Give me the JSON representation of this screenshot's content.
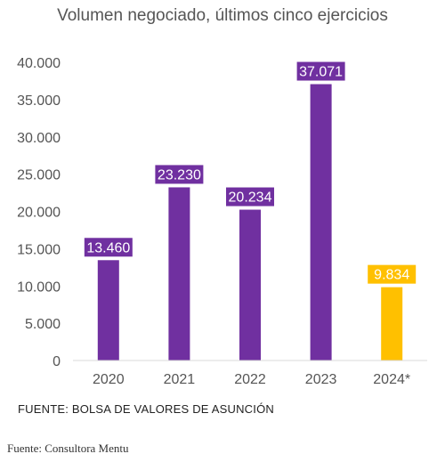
{
  "chart_data": {
    "type": "bar",
    "title": "Volumen negociado, últimos cinco ejercicios",
    "categories": [
      "2020",
      "2021",
      "2022",
      "2023",
      "2024*"
    ],
    "values": [
      13460,
      23230,
      20234,
      37071,
      9834
    ],
    "value_labels": [
      "13.460",
      "23.230",
      "20.234",
      "37.071",
      "9.834"
    ],
    "bar_colors": [
      "#7030a0",
      "#7030a0",
      "#7030a0",
      "#7030a0",
      "#ffc000"
    ],
    "ylim": [
      0,
      40000
    ],
    "yticks": [
      0,
      5000,
      10000,
      15000,
      20000,
      25000,
      30000,
      35000,
      40000
    ],
    "ytick_labels": [
      "0",
      "5.000",
      "10.000",
      "15.000",
      "20.000",
      "25.000",
      "30.000",
      "35.000",
      "40.000"
    ],
    "xlabel": "",
    "ylabel": "",
    "grid": false,
    "legend": "none"
  },
  "source_chart": "FUENTE: BOLSA DE VALORES DE ASUNCIÓN",
  "source_caption": "Fuente: Consultora Mentu"
}
